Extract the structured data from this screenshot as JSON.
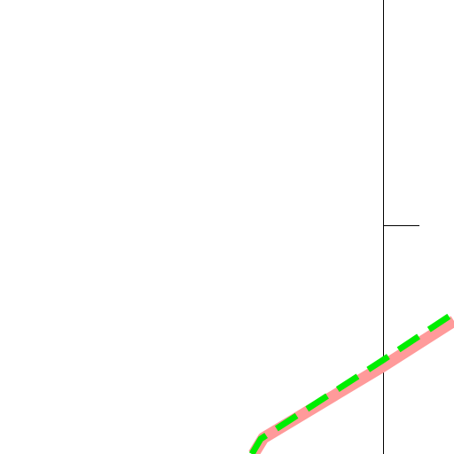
{
  "colors": {
    "background": "#ffffff",
    "axis": "#000000",
    "route_base": "#ff9a9a",
    "route_overlay": "#00ee00"
  },
  "route_styles": {
    "base": "solid",
    "overlay": "dashed"
  }
}
